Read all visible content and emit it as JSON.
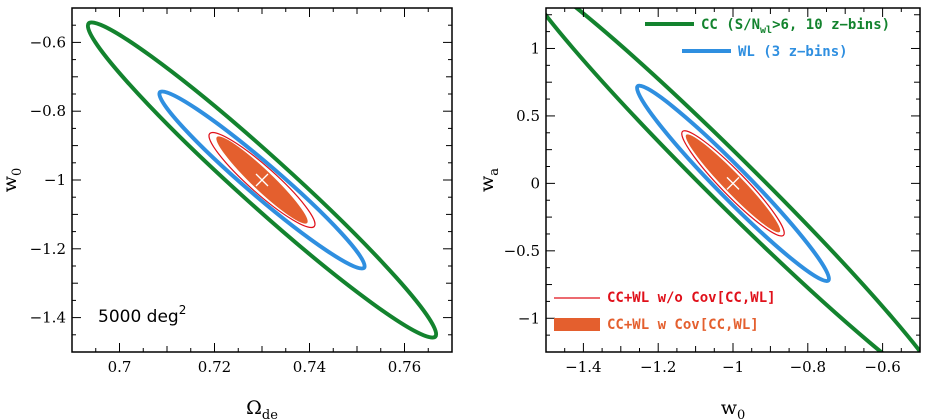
{
  "colors": {
    "cc": "#13832e",
    "wl": "#2f8fe0",
    "combined_line": "#e0101a",
    "combined_fill": "#e45f2e",
    "fiducial_marker": "#ffffff"
  },
  "chart_data": [
    {
      "type": "contour",
      "xlabel": "Ω",
      "xlabel_sub": "de",
      "ylabel": "w",
      "ylabel_sub": "0",
      "xlim": [
        0.69,
        0.77
      ],
      "ylim": [
        -1.5,
        -0.5
      ],
      "xticks": [
        0.7,
        0.72,
        0.74,
        0.76
      ],
      "xtick_labels": [
        "0.7",
        "0.72",
        "0.74",
        "0.76"
      ],
      "yticks": [
        -1.4,
        -1.2,
        -1,
        -0.8,
        -0.6
      ],
      "ytick_labels": [
        "−1.4",
        "−1.2",
        "−1",
        "−0.8",
        "−0.6"
      ],
      "annotation": "5000 deg",
      "annotation_sup": "2",
      "fiducial": [
        0.73,
        -1.0
      ],
      "series": [
        {
          "key": "cc",
          "style": "line",
          "center": [
            0.73,
            -1.0
          ],
          "extreme_points": [
            [
              0.6935,
              -0.545
            ],
            [
              0.767,
              -1.455
            ]
          ],
          "narrow_half_extent_x": 0.0078
        },
        {
          "key": "wl",
          "style": "line",
          "center": [
            0.73,
            -1.0
          ],
          "extreme_points": [
            [
              0.7085,
              -0.745
            ],
            [
              0.7515,
              -1.255
            ]
          ],
          "narrow_half_extent_x": 0.0052
        },
        {
          "key": "combined_no_cov",
          "style": "thin-line",
          "center": [
            0.73,
            -1.0
          ],
          "extreme_points": [
            [
              0.719,
              -0.865
            ],
            [
              0.741,
              -1.135
            ]
          ],
          "narrow_half_extent_x": 0.0042
        },
        {
          "key": "combined_cov",
          "style": "fill",
          "center": [
            0.73,
            -1.0
          ],
          "extreme_points": [
            [
              0.7205,
              -0.875
            ],
            [
              0.7395,
              -1.125
            ]
          ],
          "narrow_half_extent_x": 0.0031
        }
      ]
    },
    {
      "type": "contour",
      "xlabel": "w",
      "xlabel_sub": "0",
      "ylabel": "w",
      "ylabel_sub": "a",
      "xlim": [
        -1.5,
        -0.5
      ],
      "ylim": [
        -1.25,
        1.3
      ],
      "xticks": [
        -1.4,
        -1.2,
        -1,
        -0.8,
        -0.6
      ],
      "xtick_labels": [
        "−1.4",
        "−1.2",
        "−1",
        "−0.8",
        "−0.6"
      ],
      "yticks": [
        -1,
        -0.5,
        0,
        0.5,
        1
      ],
      "ytick_labels": [
        "−1",
        "−0.5",
        "0",
        "0.5",
        "1"
      ],
      "fiducial": [
        -1.0,
        0.0
      ],
      "series": [
        {
          "key": "cc",
          "style": "line",
          "center": [
            -1.0,
            0.0
          ],
          "extreme_points": [
            [
              -1.56,
              1.54
            ],
            [
              -0.44,
              -1.54
            ]
          ],
          "narrow_half_extent_x": 0.09
        },
        {
          "key": "wl",
          "style": "line",
          "center": [
            -1.0,
            0.0
          ],
          "extreme_points": [
            [
              -1.255,
              0.72
            ],
            [
              -0.745,
              -0.72
            ]
          ],
          "narrow_half_extent_x": 0.058
        },
        {
          "key": "combined_no_cov",
          "style": "thin-line",
          "center": [
            -1.0,
            0.0
          ],
          "extreme_points": [
            [
              -1.135,
              0.385
            ],
            [
              -0.865,
              -0.385
            ]
          ],
          "narrow_half_extent_x": 0.045
        },
        {
          "key": "combined_cov",
          "style": "fill",
          "center": [
            -1.0,
            0.0
          ],
          "extreme_points": [
            [
              -1.125,
              0.36
            ],
            [
              -0.875,
              -0.36
            ]
          ],
          "narrow_half_extent_x": 0.035
        }
      ]
    }
  ],
  "legend": {
    "cc_label_pre": "CC (S/N",
    "cc_label_sub": "wl",
    "cc_label_post": ">6, 10 z−bins)",
    "wl_label": "WL (3 z−bins)",
    "combined_no_cov_label": "CC+WL w/o Cov[CC,WL]",
    "combined_cov_label": "CC+WL w Cov[CC,WL]"
  }
}
